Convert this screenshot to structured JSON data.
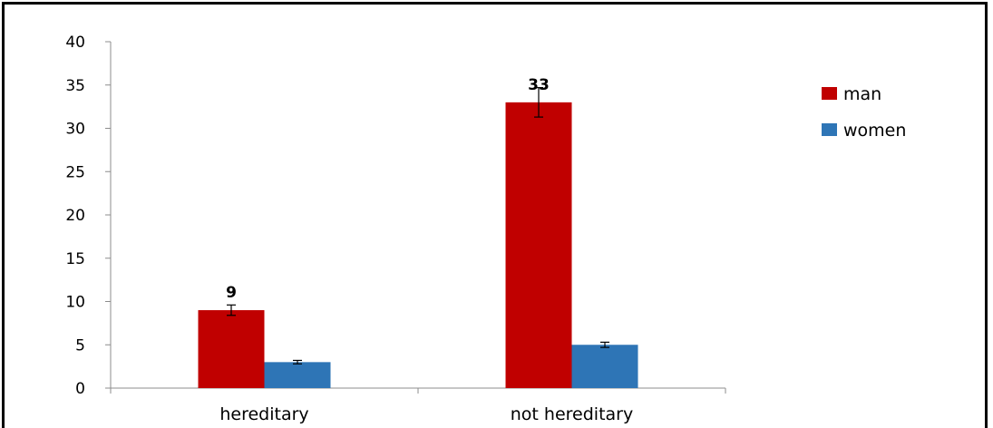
{
  "chart_data": {
    "type": "bar",
    "categories": [
      "hereditary",
      "not hereditary"
    ],
    "series": [
      {
        "name": "man",
        "color": "#c00000",
        "values": [
          9,
          33
        ],
        "error": [
          0.6,
          1.7
        ],
        "data_labels": [
          "9",
          "33"
        ]
      },
      {
        "name": "women",
        "color": "#2e75b6",
        "values": [
          3,
          5
        ],
        "error": [
          0.2,
          0.3
        ],
        "data_labels": [
          "",
          ""
        ]
      }
    ],
    "yticks": [
      "0",
      "5",
      "10",
      "15",
      "20",
      "25",
      "30",
      "35",
      "40"
    ],
    "ylim": [
      0,
      40
    ],
    "legend_position": "right",
    "grid": false
  }
}
